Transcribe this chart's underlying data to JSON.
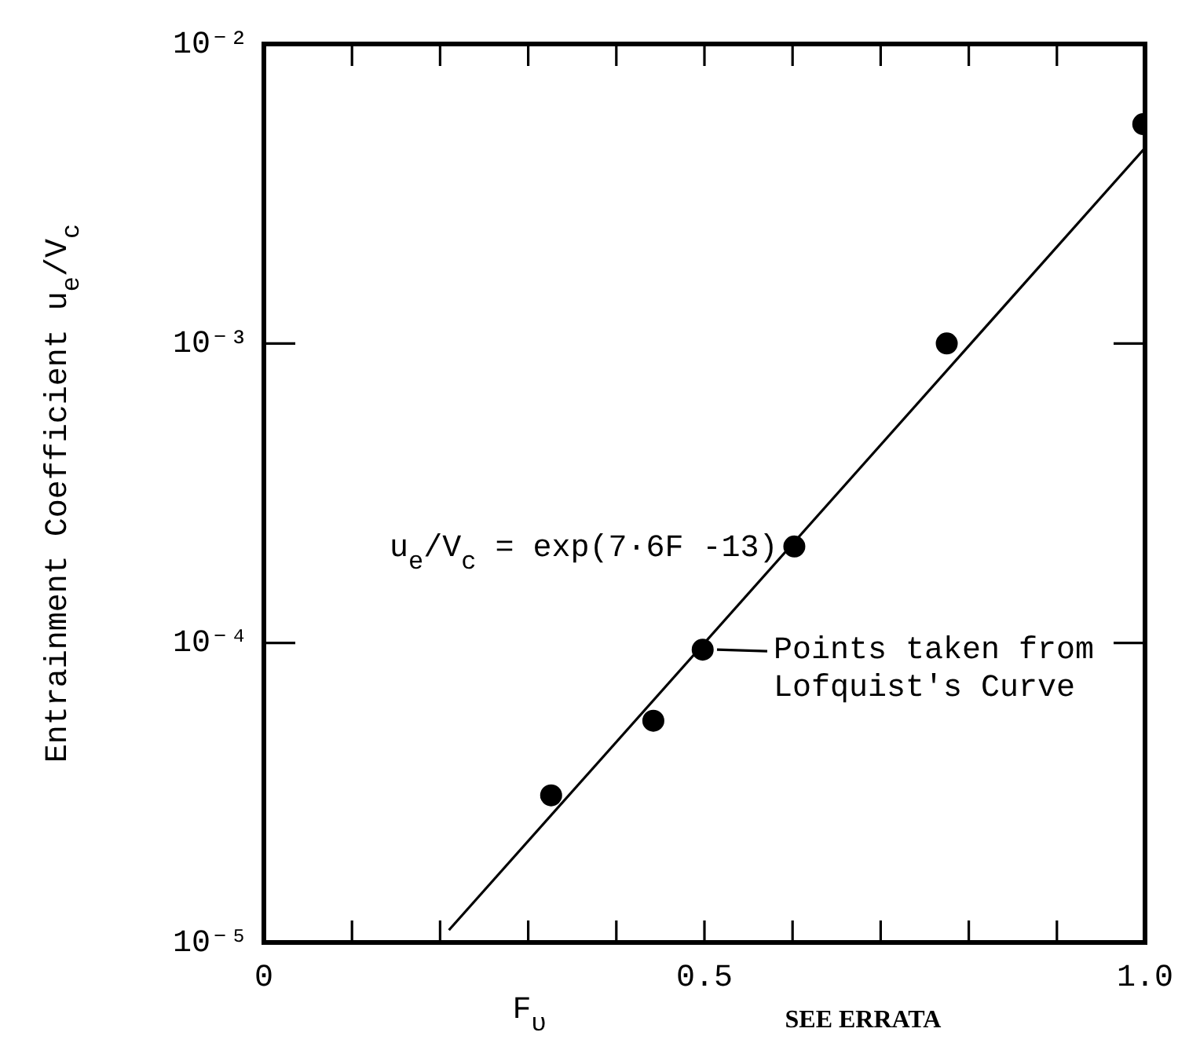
{
  "chart_data": {
    "type": "scatter",
    "xlabel": "F$_{υ}$",
    "ylabel": "Entrainment Coefficient u$_{e}$/V$_{c}$",
    "xlim": [
      0,
      1
    ],
    "ylim": [
      1e-05,
      0.01
    ],
    "log": "y",
    "grid": false,
    "xticks": [
      0,
      {
        "value": 0.1,
        "label": null
      },
      {
        "value": 0.2,
        "label": null
      },
      {
        "value": 0.3,
        "label": null
      },
      {
        "value": 0.4,
        "label": null
      },
      0.5,
      {
        "value": 0.6,
        "label": null
      },
      {
        "value": 0.7,
        "label": null
      },
      {
        "value": 0.8,
        "label": null
      },
      {
        "value": 0.9,
        "label": null
      },
      {
        "value": 1,
        "label": "1.0"
      }
    ],
    "yticks": [
      {
        "value": 1e-05,
        "label": "10⁻⁵"
      },
      {
        "value": 0.0001,
        "label": "10⁻⁴"
      },
      {
        "value": 0.001,
        "label": "10⁻³"
      },
      {
        "value": 0.01,
        "label": "10⁻²"
      }
    ],
    "series": [
      {
        "type": "scatter",
        "color": "#000000",
        "marker": "circle",
        "x": [
          0.326,
          0.442,
          0.498,
          0.602,
          0.775,
          0.998
        ],
        "values": [
          3.1e-05,
          5.5e-05,
          9.5e-05,
          0.00021,
          0.001,
          0.0054
        ]
      },
      {
        "type": "line",
        "color": "#000000",
        "marker": "none",
        "x": [
          0.21,
          1.0
        ],
        "values": [
          1.1e-05,
          0.0045
        ]
      }
    ],
    "annotations": [
      "u$_{e}$/V$_{c}$ = exp(7·6F -13)",
      {
        "text": "Points taken from Lofquist's Curve",
        "x": 0.5,
        "y": 9.5e-05
      },
      "SEE ERRATA"
    ]
  }
}
